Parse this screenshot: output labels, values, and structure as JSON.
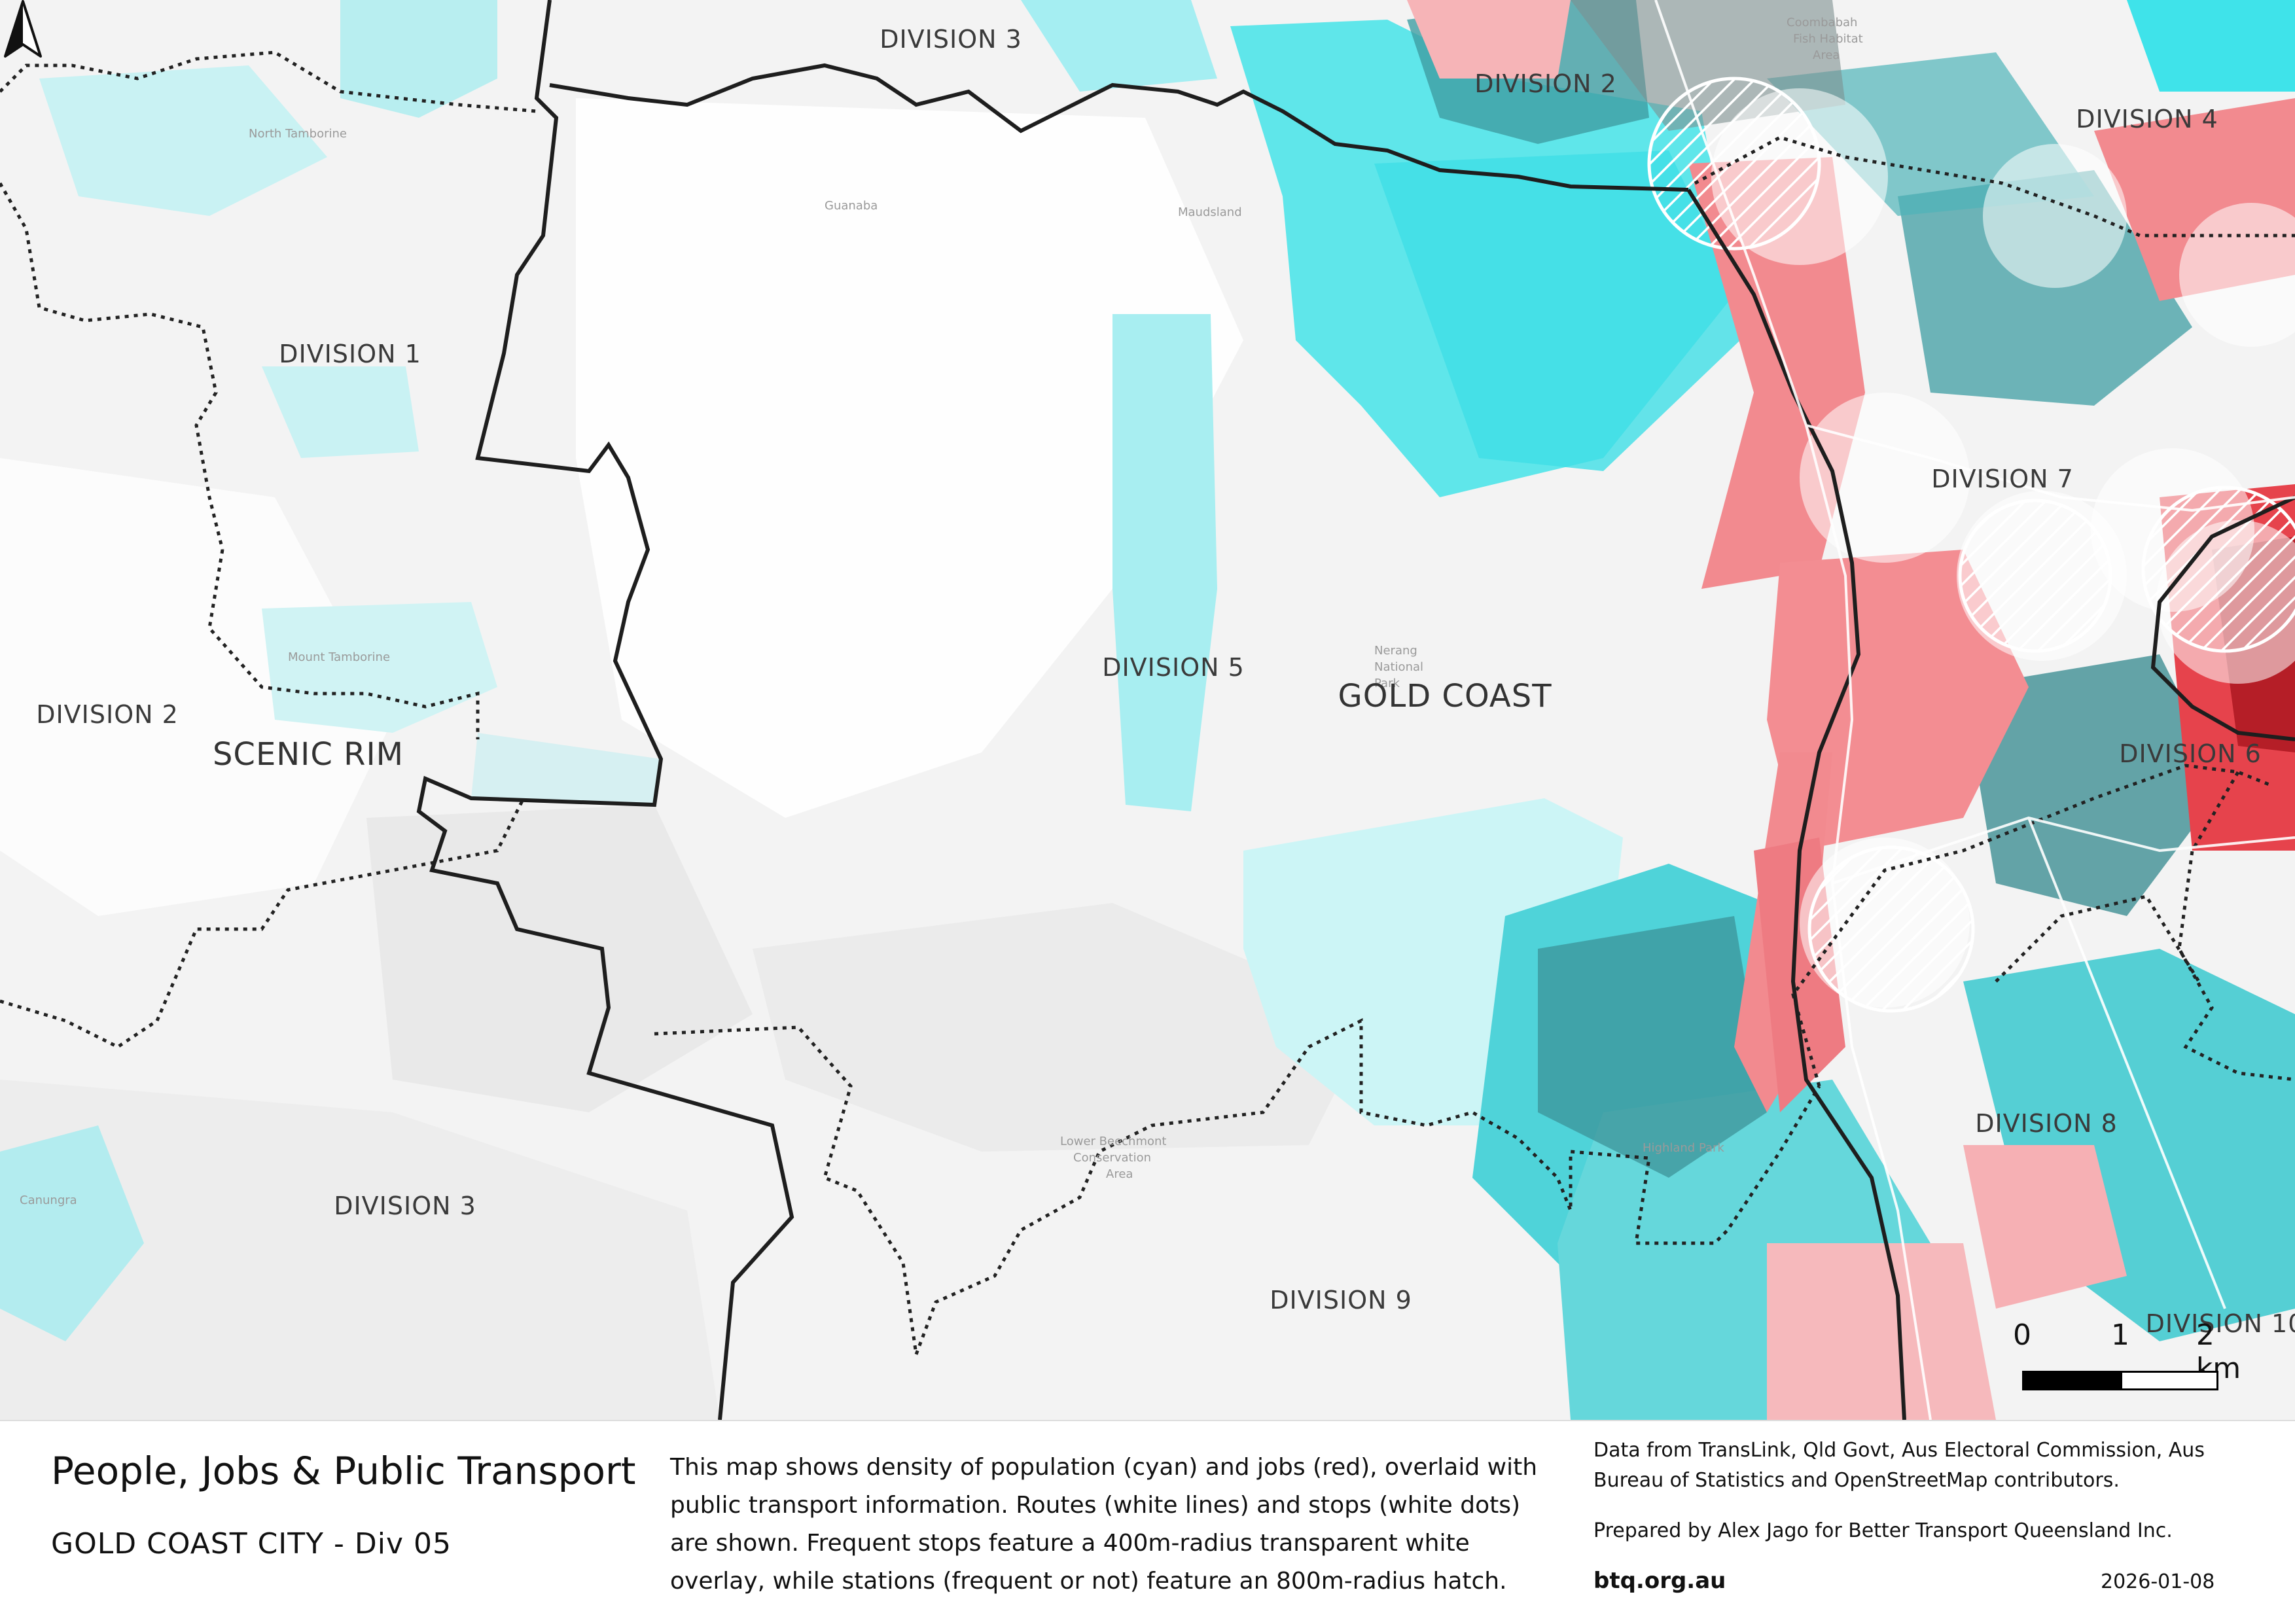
{
  "map": {
    "lga_labels": {
      "gold_coast": "GOLD COAST",
      "scenic_rim": "SCENIC RIM"
    },
    "division_labels": {
      "div3_top": "DIVISION 3",
      "div2_top": "DIVISION 2",
      "div4": "DIVISION 4",
      "div1": "DIVISION 1",
      "div7": "DIVISION 7",
      "div5": "DIVISION 5",
      "div2_left": "DIVISION 2",
      "div6": "DIVISION 6",
      "div8": "DIVISION 8",
      "div3_bottom": "DIVISION 3",
      "div9": "DIVISION 9",
      "div10": "DIVISION 10"
    },
    "colors": {
      "population": "#5fe6ea",
      "jobs": "#f28a8f",
      "mixed": "#3f9ea3",
      "high_density": "#c0202a",
      "background": "#f3f3f3"
    }
  },
  "scale_bar": {
    "ticks": [
      "0",
      "1",
      "2 km"
    ]
  },
  "north_arrow": {
    "icon": "north-arrow-icon"
  },
  "footer": {
    "title": "People, Jobs & Public Transport",
    "subtitle": "GOLD COAST CITY - Div 05",
    "description": "This map shows density of population (cyan) and jobs (red), overlaid with public transport information. Routes (white lines) and stops (white dots) are shown. Frequent stops feature a 400m-radius transparent white overlay, while stations (frequent or not) feature an 800m-radius hatch.",
    "credits": "Data from TransLink,  Qld Govt,  Aus Electoral Commission, Aus Bureau of Statistics and OpenStreetMap contributors.",
    "prepared_by": "Prepared by Alex Jago for Better Transport Queensland Inc.",
    "website": "btq.org.au",
    "date": "2026-01-08"
  }
}
